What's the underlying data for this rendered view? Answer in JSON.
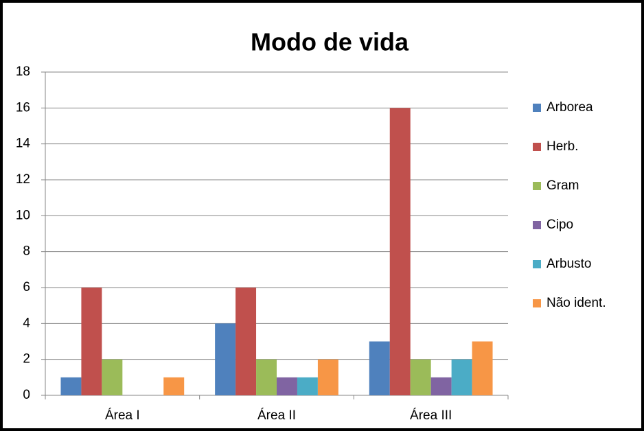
{
  "chart_data": {
    "type": "bar",
    "title": "Modo de vida",
    "categories": [
      "Área I",
      "Área II",
      "Área III"
    ],
    "series": [
      {
        "name": "Arborea",
        "color": "#4F81BD",
        "values": [
          1,
          4,
          3
        ]
      },
      {
        "name": "Herb.",
        "color": "#C0504D",
        "values": [
          6,
          6,
          16
        ]
      },
      {
        "name": "Gram",
        "color": "#9BBB59",
        "values": [
          2,
          2,
          2
        ]
      },
      {
        "name": "Cipo",
        "color": "#8064A2",
        "values": [
          0,
          1,
          1
        ]
      },
      {
        "name": "Arbusto",
        "color": "#4BACC6",
        "values": [
          0,
          1,
          2
        ]
      },
      {
        "name": "Não ident.",
        "color": "#F79646",
        "values": [
          1,
          2,
          3
        ]
      }
    ],
    "ylim": [
      0,
      18
    ],
    "yticks": [
      0,
      2,
      4,
      6,
      8,
      10,
      12,
      14,
      16,
      18
    ],
    "grid": true,
    "legend": "right"
  }
}
